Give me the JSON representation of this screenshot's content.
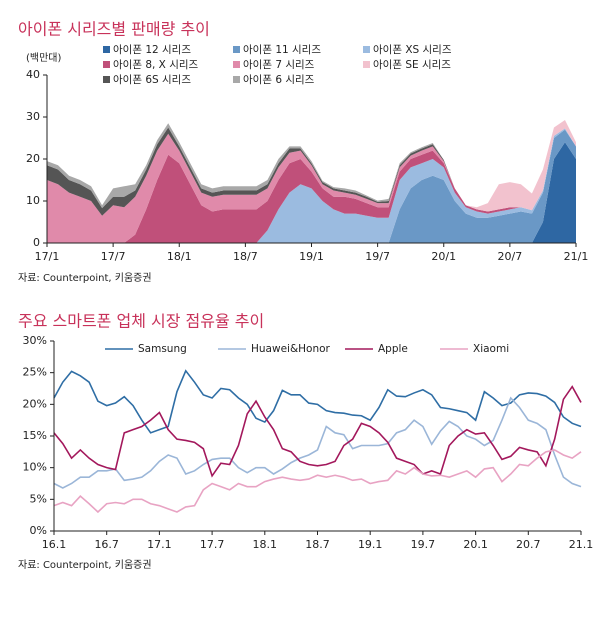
{
  "chart_data": [
    {
      "type": "area",
      "stacked": true,
      "title": "아이폰 시리즈별 판매량 추이",
      "ylabel": "(백만대)",
      "source": "자료: Counterpoint, 키움증권",
      "categories": [
        "17/1",
        null,
        null,
        null,
        null,
        null,
        "17/7",
        null,
        null,
        null,
        null,
        null,
        "18/1",
        null,
        null,
        null,
        null,
        null,
        "18/7",
        null,
        null,
        null,
        null,
        null,
        "19/1",
        null,
        null,
        null,
        null,
        null,
        "19/7",
        null,
        null,
        null,
        null,
        null,
        "20/1",
        null,
        null,
        null,
        null,
        null,
        "20/7",
        null,
        null,
        null,
        null,
        null,
        "21/1"
      ],
      "ylim": [
        0,
        40
      ],
      "yticks": [
        0,
        10,
        20,
        30,
        40
      ],
      "series": [
        {
          "name": "아이폰 12 시리즈",
          "color": "#2e67a3",
          "values": [
            0,
            0,
            0,
            0,
            0,
            0,
            0,
            0,
            0,
            0,
            0,
            0,
            0,
            0,
            0,
            0,
            0,
            0,
            0,
            0,
            0,
            0,
            0,
            0,
            0,
            0,
            0,
            0,
            0,
            0,
            0,
            0,
            0,
            0,
            0,
            0,
            0,
            0,
            0,
            0,
            0,
            0,
            0,
            0,
            0,
            5,
            20,
            24,
            20
          ]
        },
        {
          "name": "아이폰 11 시리즈",
          "color": "#6a98c6",
          "values": [
            0,
            0,
            0,
            0,
            0,
            0,
            0,
            0,
            0,
            0,
            0,
            0,
            0,
            0,
            0,
            0,
            0,
            0,
            0,
            0,
            0,
            0,
            0,
            0,
            0,
            0,
            0,
            0,
            0,
            0,
            0,
            0,
            8,
            13,
            15,
            16,
            15,
            10,
            7,
            6,
            6,
            6.5,
            7,
            7.5,
            7,
            7,
            5,
            3,
            3
          ]
        },
        {
          "name": "아이폰 XS 시리즈",
          "color": "#9bbbe0",
          "values": [
            0,
            0,
            0,
            0,
            0,
            0,
            0,
            0,
            0,
            0,
            0,
            0,
            0,
            0,
            0,
            0,
            0,
            0,
            0,
            0,
            3,
            8,
            12,
            14,
            13,
            10,
            8,
            7,
            7,
            6.5,
            6,
            6,
            7,
            5,
            4,
            4,
            3,
            2,
            1.5,
            1.5,
            1,
            1,
            1,
            1,
            0.8,
            0.5,
            0.5,
            0.3,
            0
          ]
        },
        {
          "name": "아이폰 8, X 시리즈",
          "color": "#c0507a",
          "values": [
            0,
            0,
            0,
            0,
            0,
            0,
            0,
            0,
            2,
            8,
            15,
            21,
            19,
            14,
            9,
            7.5,
            8,
            8,
            8,
            8,
            7,
            7,
            7,
            6,
            4,
            3,
            3,
            4,
            3.5,
            3,
            2.5,
            2.5,
            2,
            2,
            2,
            2,
            1,
            1,
            0.5,
            0.5,
            0.5,
            0.5,
            0.5,
            0,
            0,
            0,
            0,
            0,
            0
          ]
        },
        {
          "name": "아이폰 7 시리즈",
          "color": "#e08aaa",
          "values": [
            15,
            14,
            12,
            11,
            10,
            6.5,
            9,
            8.5,
            9,
            8,
            7,
            5,
            3,
            3,
            3,
            3.5,
            3.5,
            3.5,
            3.5,
            3.5,
            3,
            3,
            2.5,
            2,
            1.5,
            1,
            1.5,
            1,
            1,
            1,
            1,
            1,
            1,
            0.8,
            1,
            1,
            0.5,
            0,
            0,
            0,
            0,
            0,
            0,
            0,
            0,
            0,
            0,
            0,
            0
          ]
        },
        {
          "name": "아이폰 SE 시리즈",
          "color": "#f2c2ce",
          "values": [
            0,
            0,
            0,
            0,
            0,
            0,
            0,
            0,
            0,
            0,
            0,
            0,
            0,
            0,
            0,
            0,
            0,
            0,
            0,
            0,
            0,
            0,
            0,
            0,
            0,
            0,
            0,
            0,
            0,
            0,
            0,
            0,
            0,
            0,
            0,
            0,
            0,
            0,
            0,
            0.5,
            2,
            6,
            6,
            5.5,
            4,
            5,
            2,
            2,
            1
          ]
        },
        {
          "name": "아이폰 6S 시리즈",
          "color": "#555555",
          "values": [
            3.5,
            3.5,
            3,
            3,
            2.5,
            1.8,
            2,
            2.5,
            1.5,
            1.5,
            1.5,
            1.5,
            1,
            1,
            1,
            1,
            1,
            1,
            1,
            1,
            1,
            1,
            1,
            0.5,
            0.5,
            0.5,
            0.5,
            0.5,
            0.5,
            0.5,
            0.3,
            0.5,
            0.5,
            0.5,
            0.5,
            0.5,
            0.3,
            0,
            0,
            0,
            0,
            0,
            0,
            0,
            0,
            0,
            0,
            0,
            0
          ]
        },
        {
          "name": "아이폰 6 시리즈",
          "color": "#a8a8a8",
          "values": [
            1,
            1,
            1,
            1,
            1,
            0.7,
            2,
            2.5,
            1.5,
            1,
            1,
            1,
            1,
            1,
            1,
            1,
            1,
            1,
            1,
            1,
            1,
            1,
            0.5,
            0.5,
            0.5,
            0.3,
            0.3,
            0.5,
            0.5,
            0.3,
            0.3,
            0.5,
            0.5,
            0.3,
            0.3,
            0.3,
            0,
            0,
            0,
            0,
            0,
            0,
            0,
            0,
            0,
            0,
            0,
            0,
            0
          ]
        }
      ]
    },
    {
      "type": "line",
      "title": "주요 스마트폰 업체 시장 점유율 추이",
      "source": "자료: Counterpoint, 키움증권",
      "legend": "top",
      "categories": [
        "16.1",
        null,
        null,
        null,
        null,
        null,
        "16.7",
        null,
        null,
        null,
        null,
        null,
        "17.1",
        null,
        null,
        null,
        null,
        null,
        "17.7",
        null,
        null,
        null,
        null,
        null,
        "18.1",
        null,
        null,
        null,
        null,
        null,
        "18.7",
        null,
        null,
        null,
        null,
        null,
        "19.1",
        null,
        null,
        null,
        null,
        null,
        "19.7",
        null,
        null,
        null,
        null,
        null,
        "20.1",
        null,
        null,
        null,
        null,
        null,
        "20.7",
        null,
        null,
        null,
        null,
        null,
        "21.1"
      ],
      "ylim": [
        0,
        30
      ],
      "yticks": [
        {
          "value": 0,
          "label": "0%"
        },
        {
          "value": 5,
          "label": "5%"
        },
        {
          "value": 10,
          "label": "10%"
        },
        {
          "value": 15,
          "label": "15%"
        },
        {
          "value": 20,
          "label": "20%"
        },
        {
          "value": 25,
          "label": "25%"
        },
        {
          "value": 30,
          "label": "30%"
        }
      ],
      "series": [
        {
          "name": "Samsung",
          "color": "#2f6ea5",
          "values": [
            21,
            23.5,
            25.2,
            24.5,
            23.5,
            20.5,
            19.8,
            20.2,
            21.2,
            19.8,
            17.5,
            15.5,
            16,
            16.5,
            22,
            25.3,
            23.5,
            21.5,
            21,
            22.5,
            22.3,
            21,
            20,
            17.8,
            17.2,
            19,
            22.2,
            21.5,
            21.5,
            20.2,
            20,
            19,
            18.7,
            18.6,
            18.3,
            18.2,
            17.5,
            19.5,
            22.3,
            21.3,
            21.2,
            21.8,
            22.3,
            21.5,
            19.5,
            19.3,
            19,
            18.7,
            17.5,
            22,
            21,
            19.8,
            20.2,
            21.5,
            21.8,
            21.7,
            21.3,
            20.3,
            18,
            17,
            16.5
          ]
        },
        {
          "name": "Huawei&Honor",
          "color": "#9bb6d8",
          "values": [
            7.5,
            6.8,
            7.5,
            8.5,
            8.5,
            9.5,
            9.5,
            9.8,
            8,
            8.2,
            8.5,
            9.5,
            11,
            12,
            11.5,
            9,
            9.5,
            10.5,
            11.3,
            11.5,
            11.5,
            10,
            9.2,
            10,
            10,
            9,
            9.8,
            10.8,
            11.5,
            12,
            12.8,
            16.5,
            15.5,
            15.2,
            13,
            13.5,
            13.5,
            13.5,
            13.8,
            15.5,
            16,
            17.5,
            16.5,
            13.7,
            15.8,
            17.3,
            16.5,
            15,
            14.5,
            13.5,
            14.3,
            17.5,
            21,
            19.5,
            17.5,
            17,
            16,
            12,
            8.5,
            7.5,
            7
          ]
        },
        {
          "name": "Apple",
          "color": "#a3185c",
          "values": [
            15.5,
            13.8,
            11.5,
            12.8,
            11.5,
            10.5,
            10,
            9.7,
            15.5,
            16,
            16.5,
            17.5,
            18.7,
            16,
            14.5,
            14.3,
            14,
            13,
            8.7,
            10.7,
            10.5,
            13.5,
            18.5,
            20.5,
            18,
            16,
            13,
            12.5,
            11,
            10.5,
            10.3,
            10.5,
            11,
            13.5,
            14.5,
            17,
            16.5,
            15.5,
            14,
            11.5,
            11,
            10.5,
            9,
            9.5,
            9,
            13.5,
            15,
            16,
            15.3,
            15.5,
            13.5,
            11.3,
            11.8,
            13.2,
            12.8,
            12.5,
            10.3,
            14.5,
            20.8,
            22.8,
            20.3
          ]
        },
        {
          "name": "Xiaomi",
          "color": "#e8a3c3",
          "values": [
            4,
            4.5,
            4,
            5.5,
            4.3,
            3,
            4.3,
            4.5,
            4.3,
            5,
            5,
            4.3,
            4,
            3.5,
            3,
            3.8,
            4,
            6.5,
            7.5,
            7,
            6.5,
            7.5,
            7,
            7,
            7.8,
            8.2,
            8.5,
            8.2,
            8,
            8.2,
            8.8,
            8.5,
            8.8,
            8.5,
            8,
            8.2,
            7.5,
            7.8,
            8,
            9.5,
            9,
            10,
            9,
            8.7,
            8.8,
            8.5,
            9,
            9.5,
            8.5,
            9.8,
            10,
            7.8,
            9,
            10.5,
            10.3,
            11.5,
            12.5,
            12.8,
            12,
            11.5,
            12.5
          ]
        }
      ]
    }
  ]
}
